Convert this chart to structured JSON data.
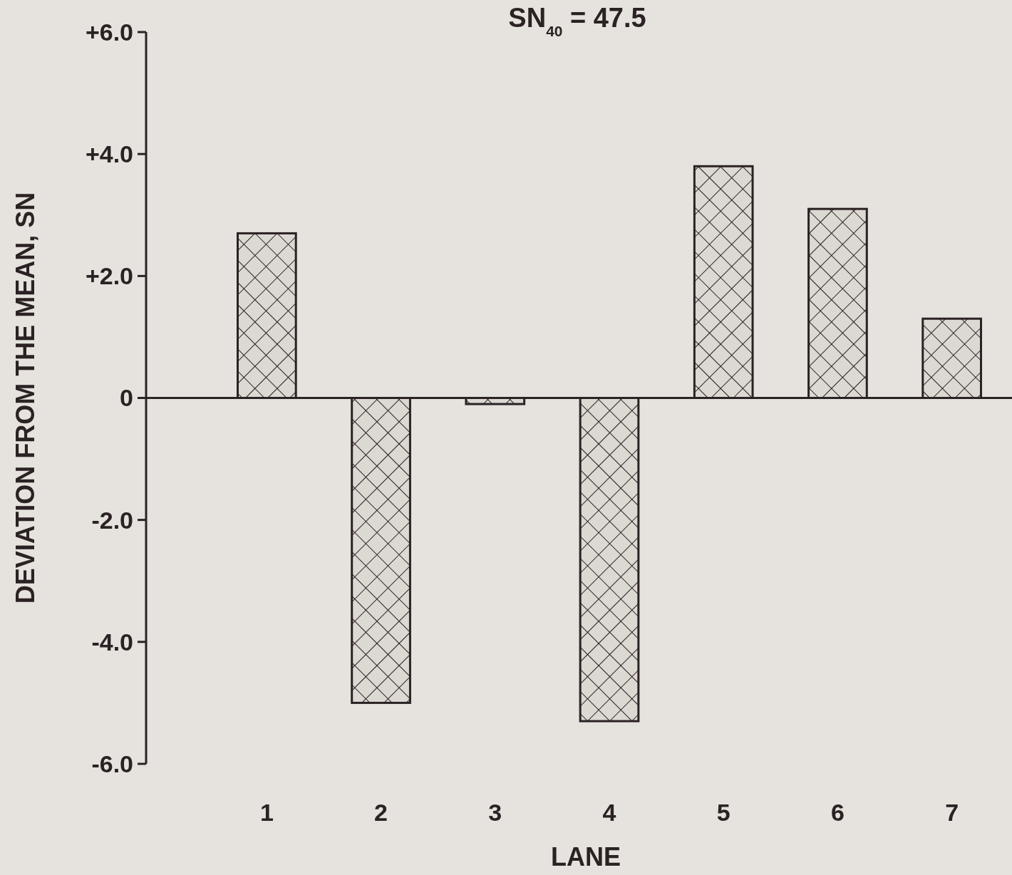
{
  "chart_data": {
    "type": "bar",
    "title": "SN$_{40}$ = 47.5",
    "categories": [
      "1",
      "2",
      "3",
      "4",
      "5",
      "6",
      "7"
    ],
    "values": [
      2.7,
      -5.0,
      -0.1,
      -5.3,
      3.8,
      3.1,
      1.3
    ],
    "color": "#2b2224",
    "xlabel": "LANE",
    "ylabel": "DEVIATION FROM THE MEAN, SN",
    "ylim": [
      -6,
      6
    ],
    "yticks": [
      {
        "value": 6,
        "label": "+6.0"
      },
      {
        "value": 4,
        "label": "+4.0"
      },
      {
        "value": 2,
        "label": "+2.0"
      },
      0,
      {
        "value": -2,
        "label": "-2.0"
      },
      {
        "value": -4,
        "label": "-4.0"
      },
      {
        "value": -6,
        "label": "-6.0"
      }
    ]
  }
}
